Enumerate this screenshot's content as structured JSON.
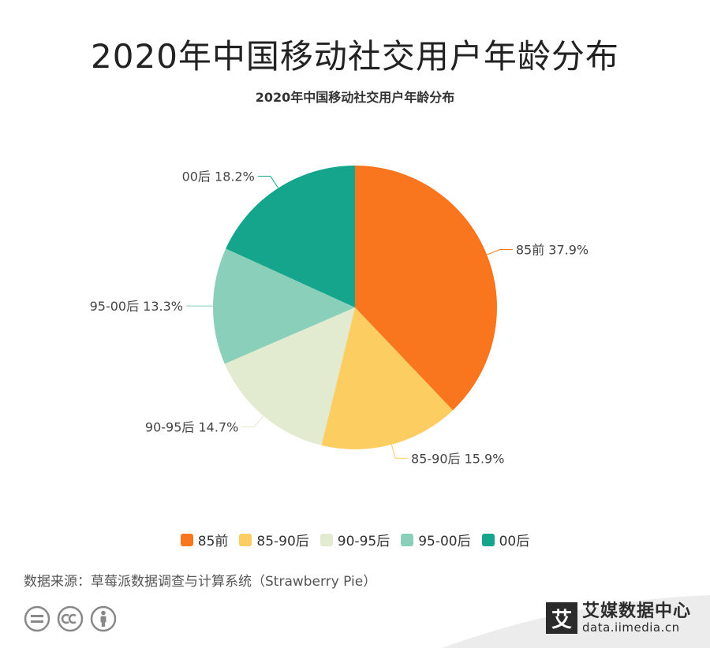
{
  "header": {
    "main_title": "2020年中国移动社交用户年龄分布"
  },
  "chart_data": {
    "type": "pie",
    "title": "2020年中国移动社交用户年龄分布",
    "categories": [
      "85前",
      "85-90后",
      "90-95后",
      "95-00后",
      "00后"
    ],
    "values": [
      37.9,
      15.9,
      14.7,
      13.3,
      18.2
    ],
    "value_labels": [
      "85前 37.9%",
      "85-90后 15.9%",
      "90-95后 14.7%",
      "95-00后 13.3%",
      "00后 18.2%"
    ],
    "colors": [
      "#fa761e",
      "#fccd61",
      "#e2ead0",
      "#8acfba",
      "#14a58c"
    ],
    "legend_position": "bottom",
    "start": "top, clockwise"
  },
  "footer": {
    "source": "数据来源：草莓派数据调查与计算系统（Strawberry Pie）",
    "brand_logo": "艾",
    "brand_name": "艾媒数据中心",
    "brand_url": "data.iimedia.cn",
    "icons": [
      "equal-icon",
      "cc-icon",
      "person-icon"
    ]
  }
}
